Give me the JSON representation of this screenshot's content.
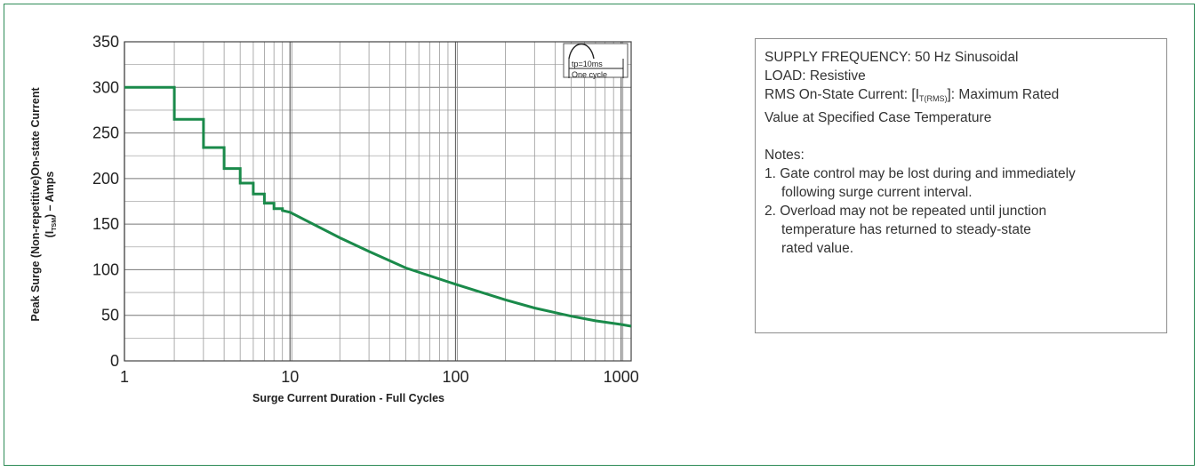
{
  "chart_data": {
    "type": "line",
    "xscale": "log",
    "xlim": [
      1,
      1150
    ],
    "ylim": [
      0,
      350
    ],
    "xlabel": "Surge Current Duration - Full Cycles",
    "ylabel_line1": "Peak Surge (Non-repetitive)On-state Current",
    "ylabel_line2_pre": "(I",
    "ylabel_line2_sub": "TSM",
    "ylabel_line2_post": ") – Amps",
    "x_ticks": [
      1,
      10,
      100,
      1000
    ],
    "x_tick_labels": [
      "1",
      "10",
      "100",
      "1000"
    ],
    "y_ticks": [
      0,
      50,
      100,
      150,
      200,
      250,
      300,
      350
    ],
    "y_tick_labels": [
      "0",
      "50",
      "100",
      "150",
      "200",
      "250",
      "300",
      "350"
    ],
    "grid": true,
    "line_color": "#1a8a4a",
    "series": [
      {
        "x": [
          1,
          2,
          2,
          3,
          3,
          4,
          4,
          5,
          5,
          6,
          6,
          7,
          7,
          8,
          8,
          9,
          9,
          10,
          20,
          30,
          50,
          100,
          200,
          300,
          500,
          700,
          1000,
          1150
        ],
        "y": [
          300,
          300,
          265,
          265,
          234,
          234,
          211,
          211,
          195,
          195,
          183,
          183,
          173,
          173,
          167,
          167,
          165,
          163,
          135,
          120,
          102,
          84,
          67,
          58,
          49,
          44,
          40,
          38
        ]
      }
    ],
    "inset": {
      "label_top": "tp=10ms",
      "label_bottom": "One cycle"
    }
  },
  "notes": {
    "supply": "SUPPLY FREQUENCY: 50 Hz Sinusoidal",
    "load": "LOAD: Resistive",
    "rms_pre": "RMS On-State Current: [I",
    "rms_sub": "T(RMS)",
    "rms_post": "]: Maximum Rated",
    "rms_line2": "Value at Specified Case Temperature",
    "notes_heading": "Notes:",
    "note1_line1": "1. Gate control may be lost during and immediately",
    "note1_line2": "following surge current interval.",
    "note2_line1": "2. Overload may not be repeated until junction",
    "note2_line2": "temperature has returned to steady-state",
    "note2_line3": "rated value."
  }
}
